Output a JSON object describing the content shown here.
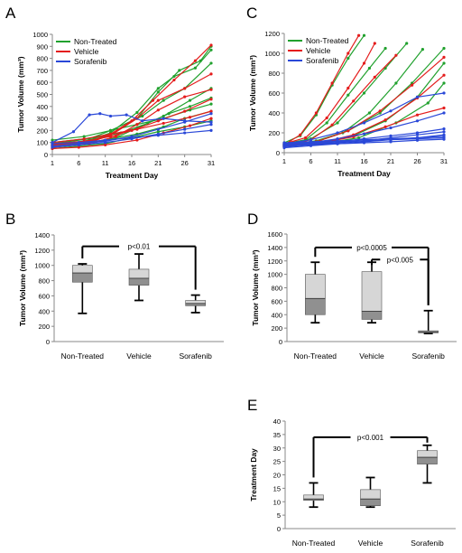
{
  "colors": {
    "green": "#21a12e",
    "red": "#e41c1c",
    "blue": "#2a48d8",
    "box_dark": "#909090",
    "box_light": "#d6d6d6",
    "axis": "#888888",
    "text": "#000000"
  },
  "chart_data": [
    {
      "panel": "A",
      "type": "line",
      "xlabel": "Treatment Day",
      "ylabel": "Tumor Volume (mm³)",
      "xlim": [
        1,
        31
      ],
      "ylim": [
        0,
        1000
      ],
      "x_ticks": [
        1,
        6,
        11,
        16,
        21,
        26,
        31
      ],
      "y_ticks": [
        0,
        100,
        200,
        300,
        400,
        500,
        600,
        700,
        800,
        900,
        1000
      ],
      "legend": {
        "position": "top-left",
        "entries": [
          "Non-Treated",
          "Vehicle",
          "Sorafenib"
        ]
      },
      "series": [
        {
          "name": "Non-Treated",
          "color_key": "green",
          "lines": [
            {
              "x": [
                1,
                8,
                12,
                17,
                21,
                25,
                29,
                31
              ],
              "y": [
                80,
                110,
                160,
                300,
                520,
                700,
                780,
                900
              ]
            },
            {
              "x": [
                1,
                8,
                12,
                17,
                21,
                24,
                28,
                31
              ],
              "y": [
                70,
                120,
                180,
                350,
                550,
                650,
                720,
                870
              ]
            },
            {
              "x": [
                1,
                8,
                12,
                18,
                22,
                26,
                31
              ],
              "y": [
                90,
                130,
                200,
                320,
                450,
                550,
                760
              ]
            },
            {
              "x": [
                1,
                8,
                13,
                17,
                22,
                27,
                31
              ],
              "y": [
                60,
                90,
                140,
                220,
                320,
                450,
                550
              ]
            },
            {
              "x": [
                1,
                9,
                14,
                19,
                23,
                27,
                31
              ],
              "y": [
                100,
                140,
                180,
                260,
                340,
                400,
                470
              ]
            },
            {
              "x": [
                1,
                8,
                12,
                17,
                22,
                26,
                31
              ],
              "y": [
                80,
                100,
                130,
                170,
                230,
                300,
                360
              ]
            },
            {
              "x": [
                1,
                6,
                11,
                16,
                21,
                26,
                31
              ],
              "y": [
                50,
                70,
                90,
                140,
                190,
                230,
                280
              ]
            },
            {
              "x": [
                1,
                7,
                12,
                17,
                22,
                27,
                31
              ],
              "y": [
                120,
                150,
                200,
                250,
                300,
                370,
                420
              ]
            }
          ]
        },
        {
          "name": "Vehicle",
          "color_key": "red",
          "lines": [
            {
              "x": [
                1,
                8,
                12,
                16,
                20,
                24,
                28,
                31
              ],
              "y": [
                80,
                110,
                170,
                280,
                450,
                620,
                780,
                910
              ]
            },
            {
              "x": [
                1,
                8,
                12,
                17,
                21,
                26,
                31
              ],
              "y": [
                70,
                100,
                160,
                300,
                450,
                550,
                670
              ]
            },
            {
              "x": [
                1,
                8,
                13,
                17,
                21,
                26,
                31
              ],
              "y": [
                60,
                90,
                150,
                250,
                370,
                480,
                540
              ]
            },
            {
              "x": [
                1,
                7,
                12,
                16,
                21,
                26,
                31
              ],
              "y": [
                90,
                110,
                150,
                200,
                280,
                360,
                460
              ]
            },
            {
              "x": [
                1,
                6,
                11,
                17,
                22,
                27,
                31
              ],
              "y": [
                50,
                60,
                80,
                120,
                180,
                240,
                300
              ]
            },
            {
              "x": [
                1,
                7,
                12,
                17,
                22,
                27,
                31
              ],
              "y": [
                100,
                130,
                170,
                210,
                260,
                310,
                360
              ]
            }
          ]
        },
        {
          "name": "Sorafenib",
          "color_key": "blue",
          "lines": [
            {
              "x": [
                1,
                5,
                8,
                10,
                12,
                15,
                18,
                22,
                26,
                31
              ],
              "y": [
                100,
                190,
                330,
                340,
                320,
                330,
                280,
                300,
                280,
                270
              ]
            },
            {
              "x": [
                1,
                6,
                11,
                16,
                21,
                26,
                31
              ],
              "y": [
                90,
                100,
                120,
                140,
                160,
                180,
                200
              ]
            },
            {
              "x": [
                1,
                6,
                11,
                16,
                21,
                26,
                31
              ],
              "y": [
                70,
                90,
                110,
                150,
                210,
                270,
                340
              ]
            },
            {
              "x": [
                1,
                6,
                11,
                16,
                21,
                26,
                31
              ],
              "y": [
                60,
                80,
                100,
                130,
                170,
                210,
                250
              ]
            }
          ]
        }
      ]
    },
    {
      "panel": "C",
      "type": "line",
      "xlabel": "Treatment Day",
      "ylabel": "Tumor Volume (mm³)",
      "xlim": [
        1,
        31
      ],
      "ylim": [
        0,
        1200
      ],
      "x_ticks": [
        1,
        6,
        11,
        16,
        21,
        26,
        31
      ],
      "y_ticks": [
        0,
        200,
        400,
        600,
        800,
        1000,
        1200
      ],
      "legend": {
        "position": "top-left",
        "entries": [
          "Non-Treated",
          "Vehicle",
          "Sorafenib"
        ]
      },
      "series": [
        {
          "name": "Non-Treated",
          "color_key": "green",
          "lines": [
            {
              "x": [
                1,
                4,
                7,
                10,
                13,
                16
              ],
              "y": [
                100,
                170,
                380,
                680,
                950,
                1180
              ]
            },
            {
              "x": [
                1,
                5,
                9,
                13,
                17,
                20
              ],
              "y": [
                80,
                130,
                300,
                580,
                850,
                1050
              ]
            },
            {
              "x": [
                1,
                6,
                11,
                16,
                20,
                24
              ],
              "y": [
                90,
                140,
                300,
                600,
                850,
                1100
              ]
            },
            {
              "x": [
                1,
                7,
                12,
                17,
                22,
                27
              ],
              "y": [
                70,
                110,
                200,
                400,
                700,
                1040
              ]
            },
            {
              "x": [
                1,
                7,
                13,
                19,
                25,
                31
              ],
              "y": [
                80,
                120,
                220,
                400,
                700,
                1050
              ]
            },
            {
              "x": [
                1,
                8,
                14,
                20,
                26,
                31
              ],
              "y": [
                60,
                100,
                170,
                320,
                560,
                900
              ]
            },
            {
              "x": [
                1,
                8,
                15,
                22,
                28,
                31
              ],
              "y": [
                70,
                90,
                150,
                300,
                500,
                700
              ]
            }
          ]
        },
        {
          "name": "Vehicle",
          "color_key": "red",
          "lines": [
            {
              "x": [
                1,
                4,
                7,
                10,
                13,
                15
              ],
              "y": [
                80,
                180,
                400,
                700,
                1000,
                1180
              ]
            },
            {
              "x": [
                1,
                5,
                9,
                13,
                16,
                18
              ],
              "y": [
                90,
                150,
                350,
                650,
                900,
                1100
              ]
            },
            {
              "x": [
                1,
                6,
                10,
                14,
                18,
                22
              ],
              "y": [
                70,
                130,
                280,
                520,
                760,
                980
              ]
            },
            {
              "x": [
                1,
                7,
                13,
                19,
                25,
                31
              ],
              "y": [
                60,
                110,
                220,
                420,
                680,
                960
              ]
            },
            {
              "x": [
                1,
                8,
                14,
                20,
                26,
                31
              ],
              "y": [
                80,
                100,
                180,
                330,
                550,
                780
              ]
            },
            {
              "x": [
                1,
                8,
                14,
                20,
                26,
                31
              ],
              "y": [
                70,
                100,
                160,
                260,
                380,
                450
              ]
            }
          ]
        },
        {
          "name": "Sorafenib",
          "color_key": "blue",
          "lines": [
            {
              "x": [
                1,
                6,
                11,
                16,
                21,
                26,
                31
              ],
              "y": [
                90,
                130,
                200,
                300,
                420,
                560,
                600
              ]
            },
            {
              "x": [
                1,
                6,
                11,
                16,
                21,
                26,
                31
              ],
              "y": [
                80,
                100,
                140,
                190,
                250,
                320,
                400
              ]
            },
            {
              "x": [
                1,
                6,
                11,
                16,
                21,
                26,
                31
              ],
              "y": [
                70,
                90,
                110,
                140,
                170,
                200,
                240
              ]
            },
            {
              "x": [
                1,
                6,
                11,
                16,
                21,
                26,
                31
              ],
              "y": [
                60,
                80,
                100,
                120,
                150,
                180,
                210
              ]
            },
            {
              "x": [
                1,
                6,
                11,
                16,
                21,
                26,
                31
              ],
              "y": [
                50,
                70,
                90,
                110,
                130,
                150,
                180
              ]
            },
            {
              "x": [
                1,
                6,
                11,
                16,
                21,
                26,
                31
              ],
              "y": [
                90,
                100,
                110,
                120,
                130,
                140,
                150
              ]
            },
            {
              "x": [
                1,
                6,
                11,
                16,
                21,
                26,
                31
              ],
              "y": [
                70,
                80,
                90,
                100,
                110,
                125,
                135
              ]
            },
            {
              "x": [
                1,
                6,
                11,
                16,
                21,
                26,
                31
              ],
              "y": [
                100,
                110,
                120,
                130,
                140,
                150,
                165
              ]
            }
          ]
        }
      ]
    },
    {
      "panel": "B",
      "type": "box",
      "ylabel": "Tumor Volume (mm³)",
      "ylim": [
        0,
        1400
      ],
      "y_ticks": [
        0,
        200,
        400,
        600,
        800,
        1000,
        1200,
        1400
      ],
      "categories": [
        "Non-Treated",
        "Vehicle",
        "Sorafenib"
      ],
      "boxes": [
        {
          "min": 370,
          "q1": 780,
          "median": 900,
          "q3": 1000,
          "max": 1020
        },
        {
          "min": 540,
          "q1": 740,
          "median": 830,
          "q3": 950,
          "max": 1150
        },
        {
          "min": 380,
          "q1": 470,
          "median": 500,
          "q3": 540,
          "max": 610
        }
      ],
      "annotations": [
        {
          "text": "p<0.01",
          "from": 0,
          "to": 2,
          "level": 1250
        }
      ]
    },
    {
      "panel": "D",
      "type": "box",
      "ylabel": "Tumor Volume (mm³)",
      "ylim": [
        0,
        1600
      ],
      "y_ticks": [
        0,
        200,
        400,
        600,
        800,
        1000,
        1200,
        1400,
        1600
      ],
      "categories": [
        "Non-Treated",
        "Vehicle",
        "Sorafenib"
      ],
      "boxes": [
        {
          "min": 280,
          "q1": 400,
          "median": 640,
          "q3": 1000,
          "max": 1180
        },
        {
          "min": 280,
          "q1": 330,
          "median": 450,
          "q3": 1040,
          "max": 1180
        },
        {
          "min": 120,
          "q1": 130,
          "median": 145,
          "q3": 160,
          "max": 460
        }
      ],
      "annotations": [
        {
          "text": "p<0.0005",
          "from": 0,
          "to": 2,
          "level": 1400
        },
        {
          "text": "p<0.005",
          "from": 1,
          "to": 2,
          "level": 1220
        }
      ]
    },
    {
      "panel": "E",
      "type": "box",
      "ylabel": "Treatment Day",
      "ylim": [
        0,
        40
      ],
      "y_ticks": [
        0,
        5,
        10,
        15,
        20,
        25,
        30,
        35,
        40
      ],
      "categories": [
        "Non-Treated",
        "Vehicle",
        "Sorafenib"
      ],
      "boxes": [
        {
          "min": 8,
          "q1": 10.5,
          "median": 11,
          "q3": 12.5,
          "max": 17
        },
        {
          "min": 8,
          "q1": 8.5,
          "median": 11,
          "q3": 14.5,
          "max": 19
        },
        {
          "min": 17,
          "q1": 24,
          "median": 26.5,
          "q3": 29,
          "max": 31
        }
      ],
      "annotations": [
        {
          "text": "p<0.001",
          "from": 0,
          "to": 2,
          "level": 34
        }
      ]
    }
  ]
}
